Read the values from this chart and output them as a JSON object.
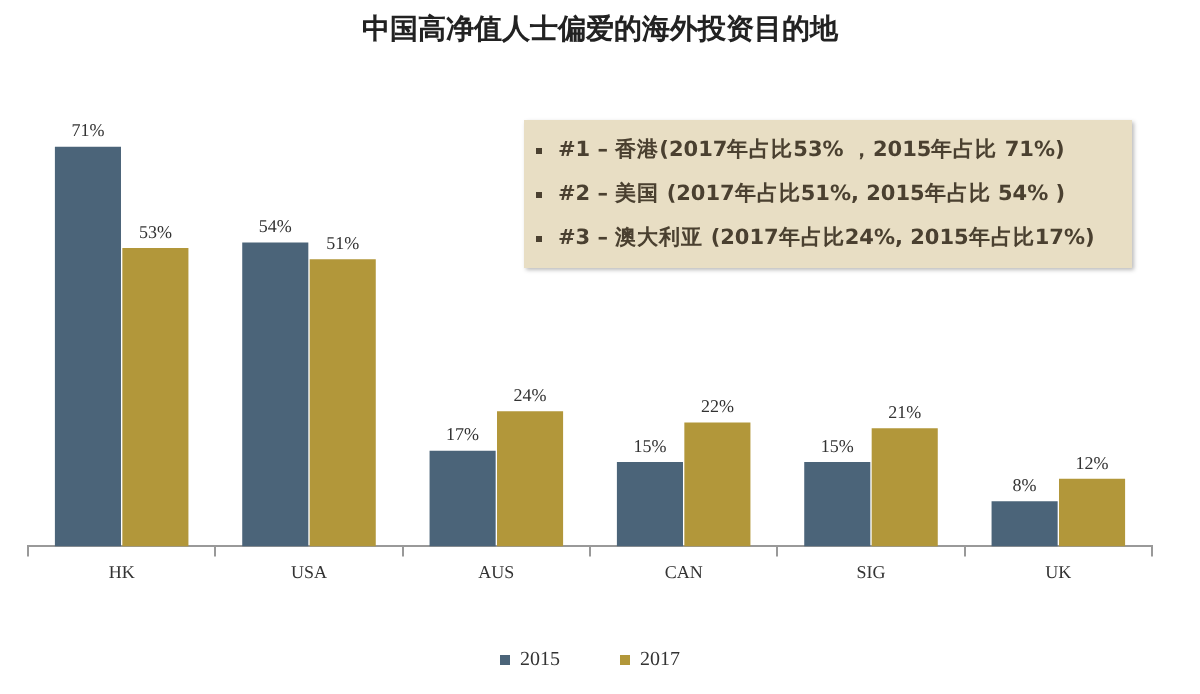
{
  "chart_data": {
    "type": "bar",
    "title": "中国高净值人士偏爱的海外投资目的地",
    "categories": [
      "HK",
      "USA",
      "AUS",
      "CAN",
      "SIG",
      "UK"
    ],
    "series": [
      {
        "name": "2015",
        "color": "#4b6479",
        "values": [
          71,
          54,
          17,
          15,
          15,
          8
        ],
        "value_labels": [
          "71%",
          "54%",
          "17%",
          "15%",
          "15%",
          "8%"
        ]
      },
      {
        "name": "2017",
        "color": "#b2973a",
        "values": [
          53,
          51,
          24,
          22,
          21,
          12
        ],
        "value_labels": [
          "53%",
          "51%",
          "24%",
          "22%",
          "21%",
          "12%"
        ]
      }
    ],
    "annotations": [
      "#1 – 香港(2017年占比53% ，2015年占比 71%)",
      "#2 – 美国 (2017年占比51%, 2015年占比 54% )",
      "#3 – 澳大利亚 (2017年占比24%, 2015年占比17%)"
    ],
    "legend": "bottom"
  }
}
